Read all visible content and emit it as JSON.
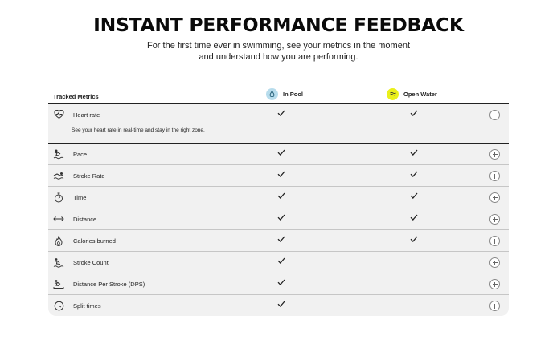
{
  "hero": {
    "title": "INSTANT PERFORMANCE FEEDBACK",
    "subtitle_line1": "For the first time ever in swimming, see your metrics in the moment",
    "subtitle_line2": "and understand how you are performing."
  },
  "table": {
    "header_label": "Tracked Metrics",
    "columns": [
      {
        "label": "In Pool",
        "icon": "pool-icon",
        "color": "#b7dcec"
      },
      {
        "label": "Open Water",
        "icon": "open-water-icon",
        "color": "#eaf01b"
      }
    ],
    "rows": [
      {
        "label": "Heart rate",
        "icon": "heart-rate-icon",
        "pool": true,
        "open_water": true,
        "expanded": true,
        "description": "See your heart rate in real-time and stay in the right zone."
      },
      {
        "label": "Pace",
        "icon": "pace-icon",
        "pool": true,
        "open_water": true,
        "expanded": false
      },
      {
        "label": "Stroke Rate",
        "icon": "stroke-rate-icon",
        "pool": true,
        "open_water": true,
        "expanded": false
      },
      {
        "label": "Time",
        "icon": "stopwatch-icon",
        "pool": true,
        "open_water": true,
        "expanded": false
      },
      {
        "label": "Distance",
        "icon": "distance-icon",
        "pool": true,
        "open_water": true,
        "expanded": false
      },
      {
        "label": "Calories burned",
        "icon": "calories-icon",
        "pool": true,
        "open_water": true,
        "expanded": false
      },
      {
        "label": "Stroke Count",
        "icon": "stroke-count-icon",
        "pool": true,
        "open_water": false,
        "expanded": false
      },
      {
        "label": "Distance Per Stroke (DPS)",
        "icon": "dps-icon",
        "pool": true,
        "open_water": false,
        "expanded": false
      },
      {
        "label": "Split times",
        "icon": "split-times-icon",
        "pool": true,
        "open_water": false,
        "expanded": false
      }
    ]
  }
}
